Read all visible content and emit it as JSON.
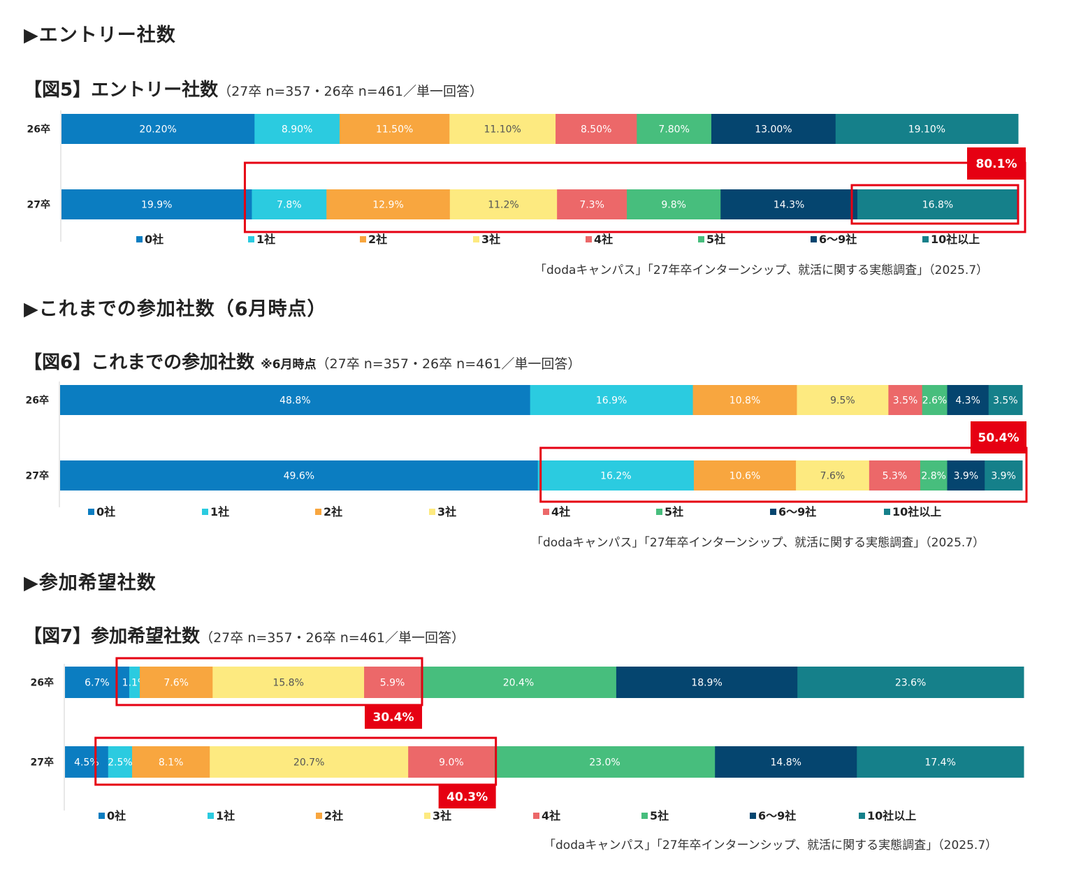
{
  "colors": [
    "#0b7dc1",
    "#2bcbe0",
    "#f8a63f",
    "#fdea80",
    "#ec6869",
    "#47be7d",
    "#05456f",
    "#15808a"
  ],
  "highlight_color": "#e60012",
  "chart_data": [
    {
      "type": "bar",
      "orientation": "horizontal-stacked-100",
      "section_heading": "▶エントリー社数",
      "title": "【図5】エントリー社数",
      "subtitle": "（27卒 n=357・26卒 n=461／単一回答）",
      "categories": [
        "26卒",
        "27卒"
      ],
      "series": [
        {
          "name": "0社",
          "values": [
            20.2,
            19.9
          ]
        },
        {
          "name": "1社",
          "values": [
            8.9,
            7.8
          ]
        },
        {
          "name": "2社",
          "values": [
            11.5,
            12.9
          ]
        },
        {
          "name": "3社",
          "values": [
            11.1,
            11.2
          ]
        },
        {
          "name": "4社",
          "values": [
            8.5,
            7.3
          ]
        },
        {
          "name": "5社",
          "values": [
            7.8,
            9.8
          ]
        },
        {
          "name": "6～9社",
          "values": [
            13.0,
            14.3
          ]
        },
        {
          "name": "10社以上",
          "values": [
            19.1,
            16.8
          ]
        }
      ],
      "value_labels": [
        [
          "20.20%",
          "8.90%",
          "11.50%",
          "11.10%",
          "8.50%",
          "7.80%",
          "13.00%",
          "19.10%"
        ],
        [
          "19.9%",
          "7.8%",
          "12.9%",
          "11.2%",
          "7.3%",
          "9.8%",
          "14.3%",
          "16.8%"
        ]
      ],
      "callout": "80.1%",
      "source": "「dodaキャンパス」「27年卒インターンシップ、就活に関する実態調査」（2025.7）"
    },
    {
      "type": "bar",
      "orientation": "horizontal-stacked-100",
      "section_heading": "▶これまでの参加社数（6月時点）",
      "title": "【図6】これまでの参加社数",
      "title_note": "※6月時点",
      "subtitle": "（27卒 n=357・26卒 n=461／単一回答）",
      "categories": [
        "26卒",
        "27卒"
      ],
      "series": [
        {
          "name": "0社",
          "values": [
            48.8,
            49.6
          ]
        },
        {
          "name": "1社",
          "values": [
            16.9,
            16.2
          ]
        },
        {
          "name": "2社",
          "values": [
            10.8,
            10.6
          ]
        },
        {
          "name": "3社",
          "values": [
            9.5,
            7.6
          ]
        },
        {
          "name": "4社",
          "values": [
            3.5,
            5.3
          ]
        },
        {
          "name": "5社",
          "values": [
            2.6,
            2.8
          ]
        },
        {
          "name": "6～9社",
          "values": [
            4.3,
            3.9
          ]
        },
        {
          "name": "10社以上",
          "values": [
            3.5,
            3.9
          ]
        }
      ],
      "value_labels": [
        [
          "48.8%",
          "16.9%",
          "10.8%",
          "9.5%",
          "3.5%",
          "2.6%",
          "4.3%",
          "3.5%"
        ],
        [
          "49.6%",
          "16.2%",
          "10.6%",
          "7.6%",
          "5.3%",
          "2.8%",
          "3.9%",
          "3.9%"
        ]
      ],
      "callout": "50.4%",
      "source": "「dodaキャンパス」「27年卒インターンシップ、就活に関する実態調査」（2025.7）"
    },
    {
      "type": "bar",
      "orientation": "horizontal-stacked-100",
      "section_heading": "▶参加希望社数",
      "title": "【図7】参加希望社数",
      "subtitle": "（27卒 n=357・26卒 n=461／単一回答）",
      "categories": [
        "26卒",
        "27卒"
      ],
      "series": [
        {
          "name": "0社",
          "values": [
            6.7,
            4.5
          ]
        },
        {
          "name": "1社",
          "values": [
            1.1,
            2.5
          ]
        },
        {
          "name": "2社",
          "values": [
            7.6,
            8.1
          ]
        },
        {
          "name": "3社",
          "values": [
            15.8,
            20.7
          ]
        },
        {
          "name": "4社",
          "values": [
            5.9,
            9.0
          ]
        },
        {
          "name": "5社",
          "values": [
            20.4,
            23.0
          ]
        },
        {
          "name": "6～9社",
          "values": [
            18.9,
            14.8
          ]
        },
        {
          "name": "10社以上",
          "values": [
            23.6,
            17.4
          ]
        }
      ],
      "value_labels": [
        [
          "6.7%",
          "1.1%",
          "7.6%",
          "15.8%",
          "5.9%",
          "20.4%",
          "18.9%",
          "23.6%"
        ],
        [
          "4.5%",
          "2.5%",
          "8.1%",
          "20.7%",
          "9.0%",
          "23.0%",
          "14.8%",
          "17.4%"
        ]
      ],
      "callouts": [
        "30.4%",
        "40.3%"
      ],
      "source": "「dodaキャンパス」「27年卒インターンシップ、就活に関する実態調査」（2025.7）"
    }
  ]
}
